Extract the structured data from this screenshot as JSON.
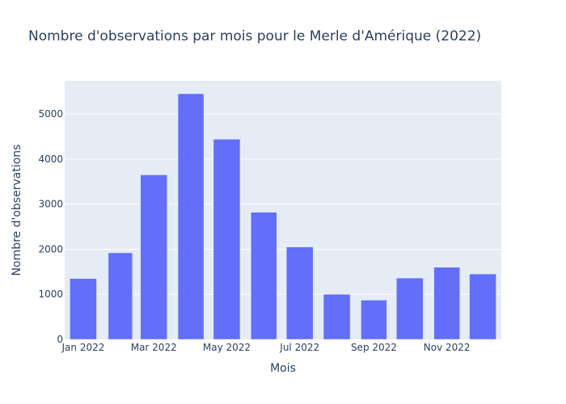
{
  "chart_data": {
    "type": "bar",
    "title": "Nombre d'observations par mois pour le Merle d'Amérique (2022)",
    "xlabel": "Mois",
    "ylabel": "Nombre d'observations",
    "categories": [
      "2022-01",
      "2022-02",
      "2022-03",
      "2022-04",
      "2022-05",
      "2022-06",
      "2022-07",
      "2022-08",
      "2022-09",
      "2022-10",
      "2022-11",
      "2022-12"
    ],
    "values": [
      1350,
      1920,
      3650,
      5450,
      4440,
      2820,
      2050,
      1000,
      870,
      1360,
      1600,
      1450
    ],
    "x_ticks": [
      "Jan 2022",
      "Mar 2022",
      "May 2022",
      "Jul 2022",
      "Sep 2022",
      "Nov 2022"
    ],
    "y_ticks": [
      "0",
      "1000",
      "2000",
      "3000",
      "4000",
      "5000"
    ],
    "ylim": [
      0,
      5737
    ],
    "grid": true,
    "colors": {
      "bar": "#636efa",
      "plot_background": "#e5ecf6",
      "grid": "#ffffff",
      "text": "#2a3f5f"
    }
  }
}
